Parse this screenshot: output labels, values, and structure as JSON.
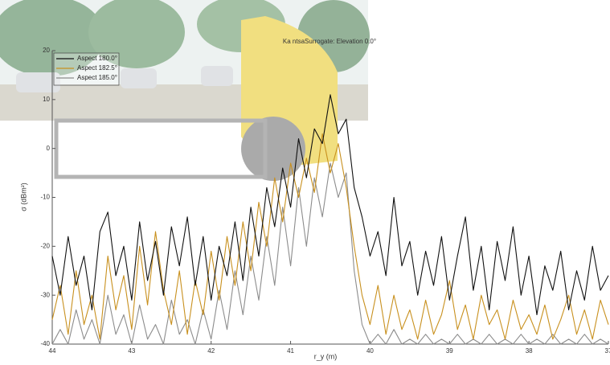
{
  "chart_data": {
    "type": "line",
    "title": "Ka ntsaSurrogate:  Elevation 0.0°",
    "xlabel": "r_y (m)",
    "ylabel": "σ (dBm²)",
    "xlim": [
      44,
      37
    ],
    "xticks": [
      44,
      43,
      42,
      41,
      40,
      39,
      38,
      37
    ],
    "ylim": [
      -40,
      20
    ],
    "yticks": [
      20,
      10,
      0,
      -10,
      -20,
      -30,
      -40
    ],
    "legend": "upper left",
    "x": [
      44.0,
      43.9,
      43.8,
      43.7,
      43.6,
      43.5,
      43.4,
      43.3,
      43.2,
      43.1,
      43.0,
      42.9,
      42.8,
      42.7,
      42.6,
      42.5,
      42.4,
      42.3,
      42.2,
      42.1,
      42.0,
      41.9,
      41.8,
      41.7,
      41.6,
      41.5,
      41.4,
      41.3,
      41.2,
      41.1,
      41.0,
      40.9,
      40.8,
      40.7,
      40.6,
      40.5,
      40.4,
      40.3,
      40.2,
      40.1,
      40.0,
      39.9,
      39.8,
      39.7,
      39.6,
      39.5,
      39.4,
      39.3,
      39.2,
      39.1,
      39.0,
      38.9,
      38.8,
      38.7,
      38.6,
      38.5,
      38.4,
      38.3,
      38.2,
      38.1,
      38.0,
      37.9,
      37.8,
      37.7,
      37.6,
      37.5,
      37.4,
      37.3,
      37.2,
      37.1,
      37.0
    ],
    "series": [
      {
        "name": "Aspect 180.0°",
        "color": "#111111",
        "values": [
          -22,
          -30,
          -18,
          -28,
          -22,
          -33,
          -17,
          -13,
          -26,
          -20,
          -31,
          -15,
          -27,
          -19,
          -30,
          -16,
          -24,
          -14,
          -28,
          -18,
          -31,
          -20,
          -26,
          -15,
          -27,
          -12,
          -22,
          -8,
          -16,
          -4,
          -12,
          2,
          -6,
          4,
          1,
          11,
          3,
          6,
          -8,
          -14,
          -22,
          -17,
          -26,
          -10,
          -24,
          -19,
          -30,
          -21,
          -28,
          -18,
          -31,
          -22,
          -14,
          -29,
          -20,
          -33,
          -19,
          -27,
          -16,
          -30,
          -22,
          -34,
          -24,
          -29,
          -21,
          -33,
          -25,
          -31,
          -20,
          -29,
          -26
        ]
      },
      {
        "name": "Aspect 182.5°",
        "color": "#c8901e",
        "values": [
          -35,
          -28,
          -38,
          -25,
          -36,
          -30,
          -39,
          -22,
          -33,
          -26,
          -37,
          -20,
          -32,
          -17,
          -29,
          -36,
          -25,
          -38,
          -27,
          -34,
          -21,
          -31,
          -18,
          -28,
          -15,
          -25,
          -11,
          -20,
          -6,
          -15,
          -3,
          -10,
          -2,
          -9,
          3,
          -5,
          1,
          -8,
          -20,
          -30,
          -36,
          -28,
          -38,
          -30,
          -37,
          -33,
          -39,
          -31,
          -38,
          -34,
          -27,
          -37,
          -32,
          -39,
          -30,
          -36,
          -33,
          -39,
          -31,
          -37,
          -34,
          -38,
          -32,
          -39,
          -35,
          -30,
          -38,
          -33,
          -39,
          -31,
          -36
        ]
      },
      {
        "name": "Aspect 185.0°",
        "color": "#8c8c8c",
        "values": [
          -40,
          -37,
          -40,
          -33,
          -39,
          -35,
          -40,
          -30,
          -38,
          -34,
          -40,
          -32,
          -39,
          -36,
          -40,
          -31,
          -38,
          -35,
          -40,
          -33,
          -39,
          -29,
          -37,
          -25,
          -34,
          -22,
          -31,
          -18,
          -28,
          -12,
          -24,
          -8,
          -20,
          -6,
          -14,
          -3,
          -10,
          -5,
          -25,
          -36,
          -40,
          -38,
          -40,
          -37,
          -40,
          -39,
          -40,
          -38,
          -40,
          -39,
          -40,
          -38,
          -40,
          -39,
          -40,
          -38,
          -40,
          -39,
          -40,
          -38,
          -40,
          -39,
          -40,
          -38,
          -40,
          -39,
          -40,
          -38,
          -40,
          -39,
          -40
        ]
      }
    ]
  }
}
